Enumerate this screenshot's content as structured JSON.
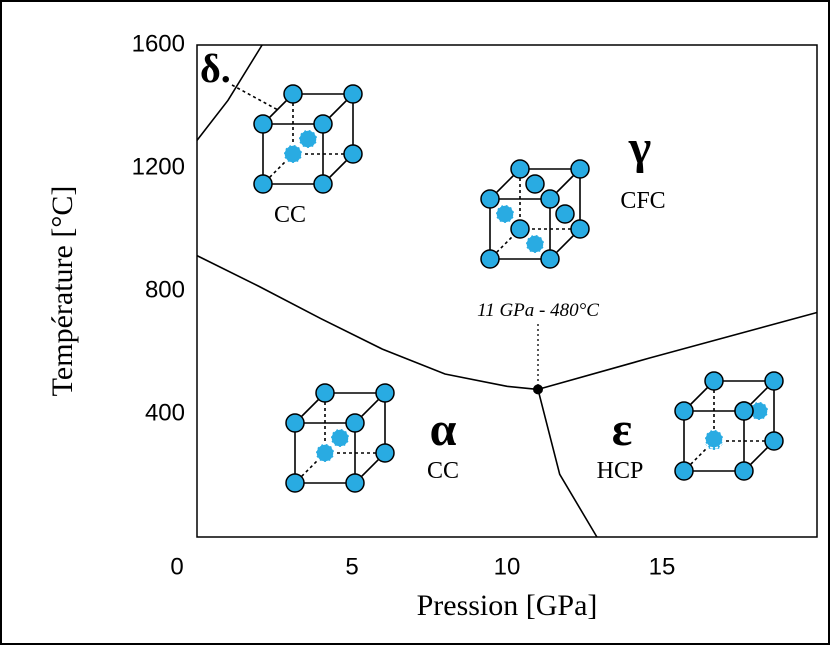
{
  "chart_data": {
    "type": "line",
    "xlabel": "Pression [GPa]",
    "ylabel": "Température [°C]",
    "xlim": [
      0,
      20
    ],
    "ylim": [
      0,
      1600
    ],
    "xticks": [
      0,
      5,
      10,
      15
    ],
    "yticks": [
      400,
      800,
      1200,
      1600
    ],
    "grid": false,
    "series": [
      {
        "color": "#000000",
        "x": [
          0,
          1,
          2.1
        ],
        "values": [
          1290,
          1420,
          1600
        ]
      },
      {
        "color": "#000000",
        "x": [
          0,
          2,
          4,
          6,
          8,
          10,
          11
        ],
        "values": [
          915,
          815,
          710,
          610,
          530,
          490,
          480
        ]
      },
      {
        "color": "#000000",
        "x": [
          11,
          14.6,
          20
        ],
        "values": [
          480,
          582,
          730
        ]
      },
      {
        "color": "#000000",
        "x": [
          11,
          11.7,
          12.9
        ],
        "values": [
          480,
          204,
          0
        ]
      }
    ],
    "point": {
      "x": 11,
      "y": 480,
      "label": "11 GPa - 480°C"
    },
    "phases": [
      {
        "symbol": "δ.",
        "structure": "CC"
      },
      {
        "symbol": "γ",
        "structure": "CFC"
      },
      {
        "symbol": "α",
        "structure": "CC"
      },
      {
        "symbol": "ε",
        "structure": "HCP"
      }
    ]
  }
}
